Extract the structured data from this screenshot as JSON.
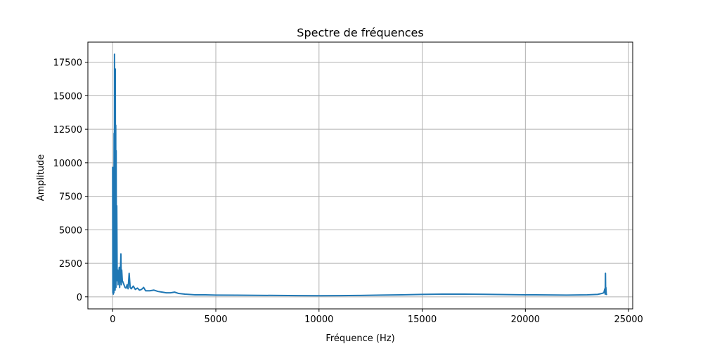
{
  "chart_data": {
    "type": "line",
    "title": "Spectre de fréquences",
    "xlabel": "Fréquence (Hz)",
    "ylabel": "Amplitude",
    "xlim": [
      -1200,
      25200
    ],
    "ylim": [
      -900,
      19000
    ],
    "xticks": [
      0,
      5000,
      10000,
      15000,
      20000,
      25000
    ],
    "xtick_labels": [
      "0",
      "5000",
      "10000",
      "15000",
      "20000",
      "25000"
    ],
    "yticks": [
      0,
      2500,
      5000,
      7500,
      10000,
      12500,
      15000,
      17500
    ],
    "ytick_labels": [
      "0",
      "2500",
      "5000",
      "7500",
      "10000",
      "12500",
      "15000",
      "17500"
    ],
    "grid": true,
    "legend": false,
    "line_color": "#1f77b4",
    "series": [
      {
        "x": [
          0,
          10,
          20,
          30,
          40,
          50,
          60,
          70,
          80,
          90,
          100,
          110,
          120,
          130,
          140,
          150,
          160,
          170,
          180,
          190,
          200,
          220,
          240,
          260,
          280,
          300,
          320,
          340,
          360,
          380,
          400,
          420,
          440,
          470,
          500,
          550,
          600,
          650,
          700,
          750,
          800,
          850,
          900,
          1000,
          1100,
          1200,
          1300,
          1400,
          1500,
          1600,
          1800,
          2000,
          2200,
          2400,
          2600,
          2800,
          3000,
          3200,
          3500,
          4000,
          4500,
          5000,
          6000,
          7000,
          8000,
          9000,
          10000,
          11000,
          12000,
          13000,
          14000,
          15000,
          16000,
          17000,
          18000,
          19000,
          20000,
          21000,
          22000,
          23000,
          23500,
          23700,
          23800,
          23850,
          23870,
          23880,
          23890,
          23900,
          23920,
          23950
        ],
        "values": [
          9700,
          300,
          6500,
          200,
          4200,
          8300,
          300,
          12200,
          600,
          18100,
          2000,
          9800,
          500,
          17000,
          1300,
          12800,
          700,
          10900,
          3600,
          1500,
          6800,
          1200,
          2000,
          900,
          1600,
          1800,
          2200,
          700,
          1500,
          2100,
          3200,
          900,
          2000,
          1200,
          1100,
          900,
          700,
          650,
          900,
          600,
          1750,
          700,
          600,
          800,
          550,
          650,
          500,
          550,
          700,
          450,
          450,
          500,
          400,
          350,
          300,
          300,
          350,
          250,
          200,
          150,
          150,
          130,
          120,
          110,
          100,
          90,
          80,
          90,
          100,
          130,
          150,
          180,
          200,
          200,
          190,
          170,
          150,
          140,
          130,
          150,
          180,
          250,
          300,
          600,
          200,
          1750,
          300,
          700,
          200,
          150
        ]
      }
    ]
  }
}
